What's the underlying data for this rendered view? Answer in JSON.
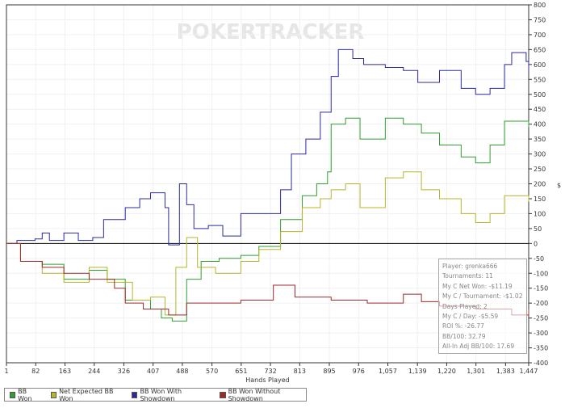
{
  "chart_data": {
    "type": "line",
    "xlabel": "Hands Played",
    "ylabel": "$",
    "xlim": [
      1,
      1447
    ],
    "ylim": [
      -400,
      800
    ],
    "x_ticks": [
      "1",
      "82",
      "163",
      "244",
      "326",
      "407",
      "488",
      "570",
      "651",
      "732",
      "813",
      "895",
      "976",
      "1,057",
      "1,139",
      "1,220",
      "1,301",
      "1,383",
      "1,447"
    ],
    "x_tick_values": [
      1,
      82,
      163,
      244,
      326,
      407,
      488,
      570,
      651,
      732,
      813,
      895,
      976,
      1057,
      1139,
      1220,
      1301,
      1383,
      1447
    ],
    "y_ticks": [
      800,
      750,
      700,
      650,
      600,
      550,
      500,
      450,
      400,
      350,
      300,
      250,
      200,
      150,
      100,
      50,
      0,
      -50,
      -100,
      -150,
      -200,
      -250,
      -300,
      -350,
      -400
    ],
    "grid": true,
    "legend_position": "bottom-left",
    "series": [
      {
        "name": "BB Won",
        "color": "#2e9e2e",
        "points": [
          [
            1,
            0
          ],
          [
            40,
            -60
          ],
          [
            100,
            -70
          ],
          [
            160,
            -120
          ],
          [
            230,
            -90
          ],
          [
            280,
            -120
          ],
          [
            330,
            -190
          ],
          [
            400,
            -220
          ],
          [
            430,
            -250
          ],
          [
            460,
            -260
          ],
          [
            500,
            -120
          ],
          [
            540,
            -60
          ],
          [
            590,
            -50
          ],
          [
            650,
            -40
          ],
          [
            700,
            -10
          ],
          [
            760,
            80
          ],
          [
            820,
            160
          ],
          [
            860,
            200
          ],
          [
            890,
            240
          ],
          [
            900,
            400
          ],
          [
            940,
            420
          ],
          [
            980,
            350
          ],
          [
            1050,
            420
          ],
          [
            1100,
            400
          ],
          [
            1150,
            370
          ],
          [
            1200,
            330
          ],
          [
            1260,
            290
          ],
          [
            1300,
            270
          ],
          [
            1340,
            330
          ],
          [
            1380,
            410
          ],
          [
            1447,
            390
          ]
        ]
      },
      {
        "name": "Net Expected BB Won",
        "color": "#b5b52a",
        "points": [
          [
            1,
            0
          ],
          [
            40,
            -60
          ],
          [
            100,
            -100
          ],
          [
            160,
            -130
          ],
          [
            230,
            -80
          ],
          [
            280,
            -130
          ],
          [
            350,
            -190
          ],
          [
            400,
            -180
          ],
          [
            440,
            -240
          ],
          [
            470,
            -80
          ],
          [
            500,
            20
          ],
          [
            530,
            -80
          ],
          [
            580,
            -100
          ],
          [
            650,
            -60
          ],
          [
            700,
            -20
          ],
          [
            760,
            40
          ],
          [
            820,
            120
          ],
          [
            870,
            150
          ],
          [
            900,
            180
          ],
          [
            940,
            200
          ],
          [
            980,
            120
          ],
          [
            1050,
            220
          ],
          [
            1100,
            240
          ],
          [
            1150,
            180
          ],
          [
            1200,
            150
          ],
          [
            1260,
            100
          ],
          [
            1300,
            70
          ],
          [
            1340,
            100
          ],
          [
            1380,
            160
          ],
          [
            1447,
            140
          ]
        ]
      },
      {
        "name": "BB Won With Showdown",
        "color": "#2a2a9e",
        "points": [
          [
            1,
            0
          ],
          [
            30,
            10
          ],
          [
            80,
            15
          ],
          [
            100,
            35
          ],
          [
            120,
            10
          ],
          [
            160,
            35
          ],
          [
            200,
            10
          ],
          [
            240,
            20
          ],
          [
            270,
            80
          ],
          [
            330,
            120
          ],
          [
            370,
            150
          ],
          [
            400,
            170
          ],
          [
            440,
            120
          ],
          [
            450,
            -5
          ],
          [
            480,
            200
          ],
          [
            500,
            130
          ],
          [
            520,
            50
          ],
          [
            560,
            60
          ],
          [
            600,
            25
          ],
          [
            650,
            100
          ],
          [
            730,
            100
          ],
          [
            760,
            180
          ],
          [
            790,
            300
          ],
          [
            830,
            350
          ],
          [
            870,
            440
          ],
          [
            900,
            560
          ],
          [
            920,
            650
          ],
          [
            960,
            620
          ],
          [
            990,
            600
          ],
          [
            1050,
            590
          ],
          [
            1100,
            580
          ],
          [
            1140,
            540
          ],
          [
            1200,
            580
          ],
          [
            1260,
            520
          ],
          [
            1300,
            500
          ],
          [
            1340,
            520
          ],
          [
            1380,
            600
          ],
          [
            1400,
            640
          ],
          [
            1440,
            610
          ],
          [
            1447,
            580
          ]
        ]
      },
      {
        "name": "BB Won Without Showdown",
        "color": "#a02a2a",
        "points": [
          [
            1,
            0
          ],
          [
            40,
            -60
          ],
          [
            100,
            -80
          ],
          [
            160,
            -100
          ],
          [
            230,
            -120
          ],
          [
            300,
            -150
          ],
          [
            330,
            -200
          ],
          [
            380,
            -220
          ],
          [
            450,
            -240
          ],
          [
            500,
            -200
          ],
          [
            560,
            -200
          ],
          [
            650,
            -190
          ],
          [
            740,
            -140
          ],
          [
            800,
            -180
          ],
          [
            900,
            -190
          ],
          [
            1000,
            -200
          ],
          [
            1100,
            -170
          ],
          [
            1150,
            -195
          ],
          [
            1200,
            -210
          ],
          [
            1300,
            -220
          ],
          [
            1400,
            -240
          ],
          [
            1447,
            -220
          ]
        ]
      }
    ]
  },
  "watermark": "POKERTRACKER",
  "stats": [
    "Player: grenka666",
    "Tournaments: 11",
    "My C Net Won: -$11.19",
    "My C / Tournament: -$1.02",
    "Days Played: 2",
    "My C / Day: -$5.59",
    "ROI %: -26.77",
    "BB/100: 32.79",
    "All-In Adj BB/100: 17.69"
  ]
}
